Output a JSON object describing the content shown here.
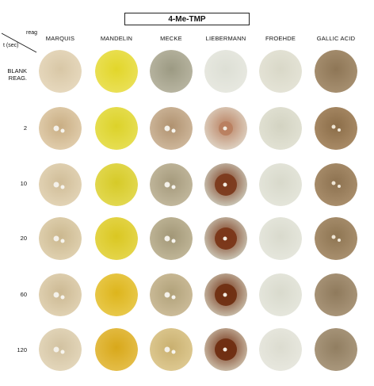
{
  "title": "4-Me-TMP",
  "corner": {
    "top": "reag",
    "bottom": "t (sec)"
  },
  "columns": [
    "MARQUIS",
    "MANDELIN",
    "MECKE",
    "LIEBERMANN",
    "FROEHDE",
    "GALLIC ACID"
  ],
  "rows": [
    {
      "label_line1": "BLANK",
      "label_line2": "REAG."
    },
    {
      "label_line1": "2",
      "label_line2": ""
    },
    {
      "label_line1": "10",
      "label_line2": ""
    },
    {
      "label_line1": "20",
      "label_line2": ""
    },
    {
      "label_line1": "60",
      "label_line2": ""
    },
    {
      "label_line1": "120",
      "label_line2": ""
    }
  ],
  "well_colors": [
    [
      "#d8c7a6",
      "#e2d62a",
      "#9c9a83",
      "#dddfd5",
      "#d9d8c8",
      "#8e7656"
    ],
    [
      "#c9ae84",
      "#dcd22a",
      "#b09270",
      "#b98060",
      "#d3d3c2",
      "#8b6d48"
    ],
    [
      "#d0bd98",
      "#d6ca28",
      "#a59a7c",
      "#7c3a1c",
      "#d8d9cb",
      "#8d7250"
    ],
    [
      "#cbb88f",
      "#dac722",
      "#a29777",
      "#7a3618",
      "#d9dacd",
      "#8e7552"
    ],
    [
      "#ccb993",
      "#ddb51c",
      "#b1a27a",
      "#702f12",
      "#d9dacd",
      "#8f7a5c"
    ],
    [
      "#d2c2a1",
      "#d8a81a",
      "#c9b070",
      "#6f2d11",
      "#dcdcd0",
      "#917e61"
    ]
  ],
  "well_rims": [
    [
      "#e6d8bd",
      "#eae056",
      "#b7b4a0",
      "#e7e8e0",
      "#e4e3d6",
      "#a68f70"
    ],
    [
      "#e0ccab",
      "#e6de52",
      "#cdb69a",
      "#ddd0c0",
      "#e1e1d3",
      "#a88a66"
    ],
    [
      "#e2d3b5",
      "#e2d850",
      "#c1b79c",
      "#c9c4b4",
      "#e4e5da",
      "#a88d6b"
    ],
    [
      "#dfd0af",
      "#e4d54a",
      "#bfb597",
      "#c8c2b1",
      "#e5e6dc",
      "#a88f6e"
    ],
    [
      "#e0d1b2",
      "#e8c84a",
      "#cbbb98",
      "#c6b9a5",
      "#e5e6dc",
      "#a89478"
    ],
    [
      "#e3d6ba",
      "#e4bd48",
      "#ddc890",
      "#c9b9a4",
      "#e7e7de",
      "#a9977c"
    ]
  ]
}
